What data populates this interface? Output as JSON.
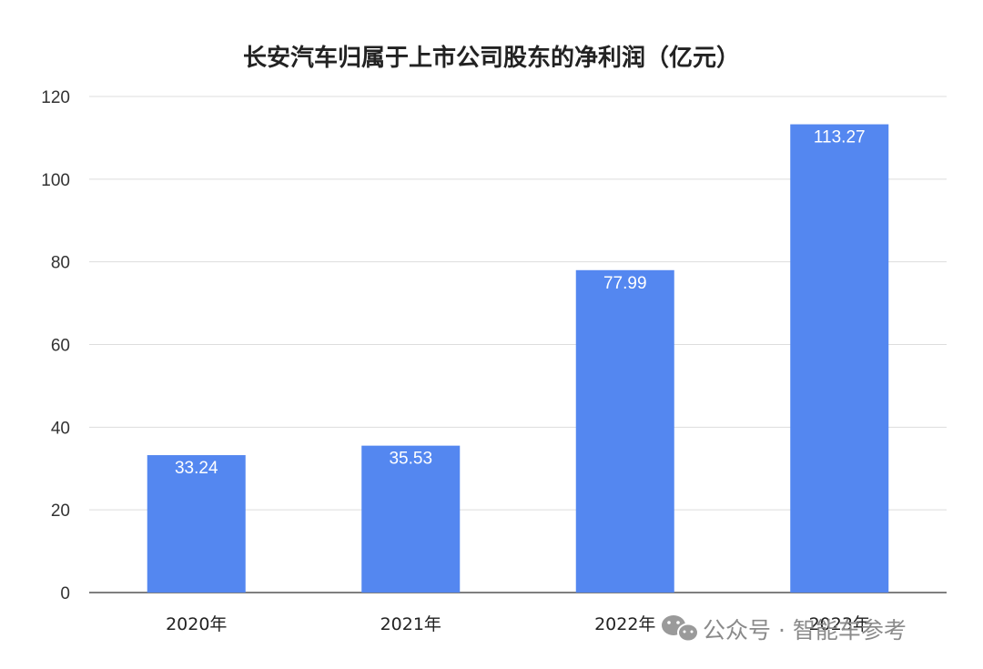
{
  "chart_data": {
    "type": "bar",
    "title": "长安汽车归属于上市公司股东的净利润（亿元）",
    "categories": [
      "2020年",
      "2021年",
      "2022年",
      "2023年"
    ],
    "values": [
      33.24,
      35.53,
      77.99,
      113.27
    ],
    "data_labels": [
      "33.24",
      "35.53",
      "77.99",
      "113.27"
    ],
    "yticks": [
      "0",
      "20",
      "40",
      "60",
      "80",
      "100",
      "120"
    ],
    "ylim": [
      0,
      120
    ],
    "xlabel": "",
    "ylabel": "",
    "grid": true,
    "legend": "none",
    "bar_color": "#5487F0"
  },
  "watermark": {
    "text": "公众号 · 智能车参考",
    "icon": "wechat-icon"
  }
}
